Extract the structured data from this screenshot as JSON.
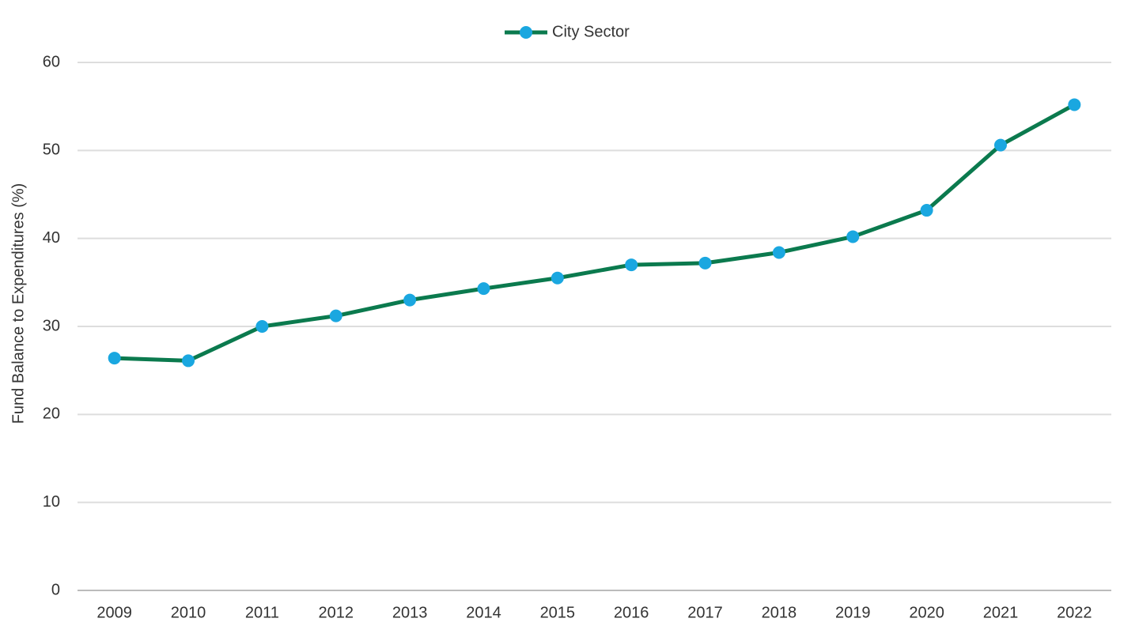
{
  "chart_data": {
    "type": "line",
    "y_label": "Fund Balance to Expenditures (%)",
    "categories": [
      "2009",
      "2010",
      "2011",
      "2012",
      "2013",
      "2014",
      "2015",
      "2016",
      "2017",
      "2018",
      "2019",
      "2020",
      "2021",
      "2022"
    ],
    "series": [
      {
        "name": "City Sector",
        "color": "#0b7a4e",
        "marker_color": "#1aa7e0",
        "values": [
          26.4,
          26.1,
          30.0,
          31.2,
          33.0,
          34.3,
          35.5,
          37.0,
          37.2,
          38.4,
          40.2,
          43.2,
          50.6,
          55.2
        ]
      }
    ],
    "ylim": [
      0,
      60
    ],
    "yticks": [
      0,
      10,
      20,
      30,
      40,
      50,
      60
    ],
    "grid": true,
    "legend": "top"
  }
}
